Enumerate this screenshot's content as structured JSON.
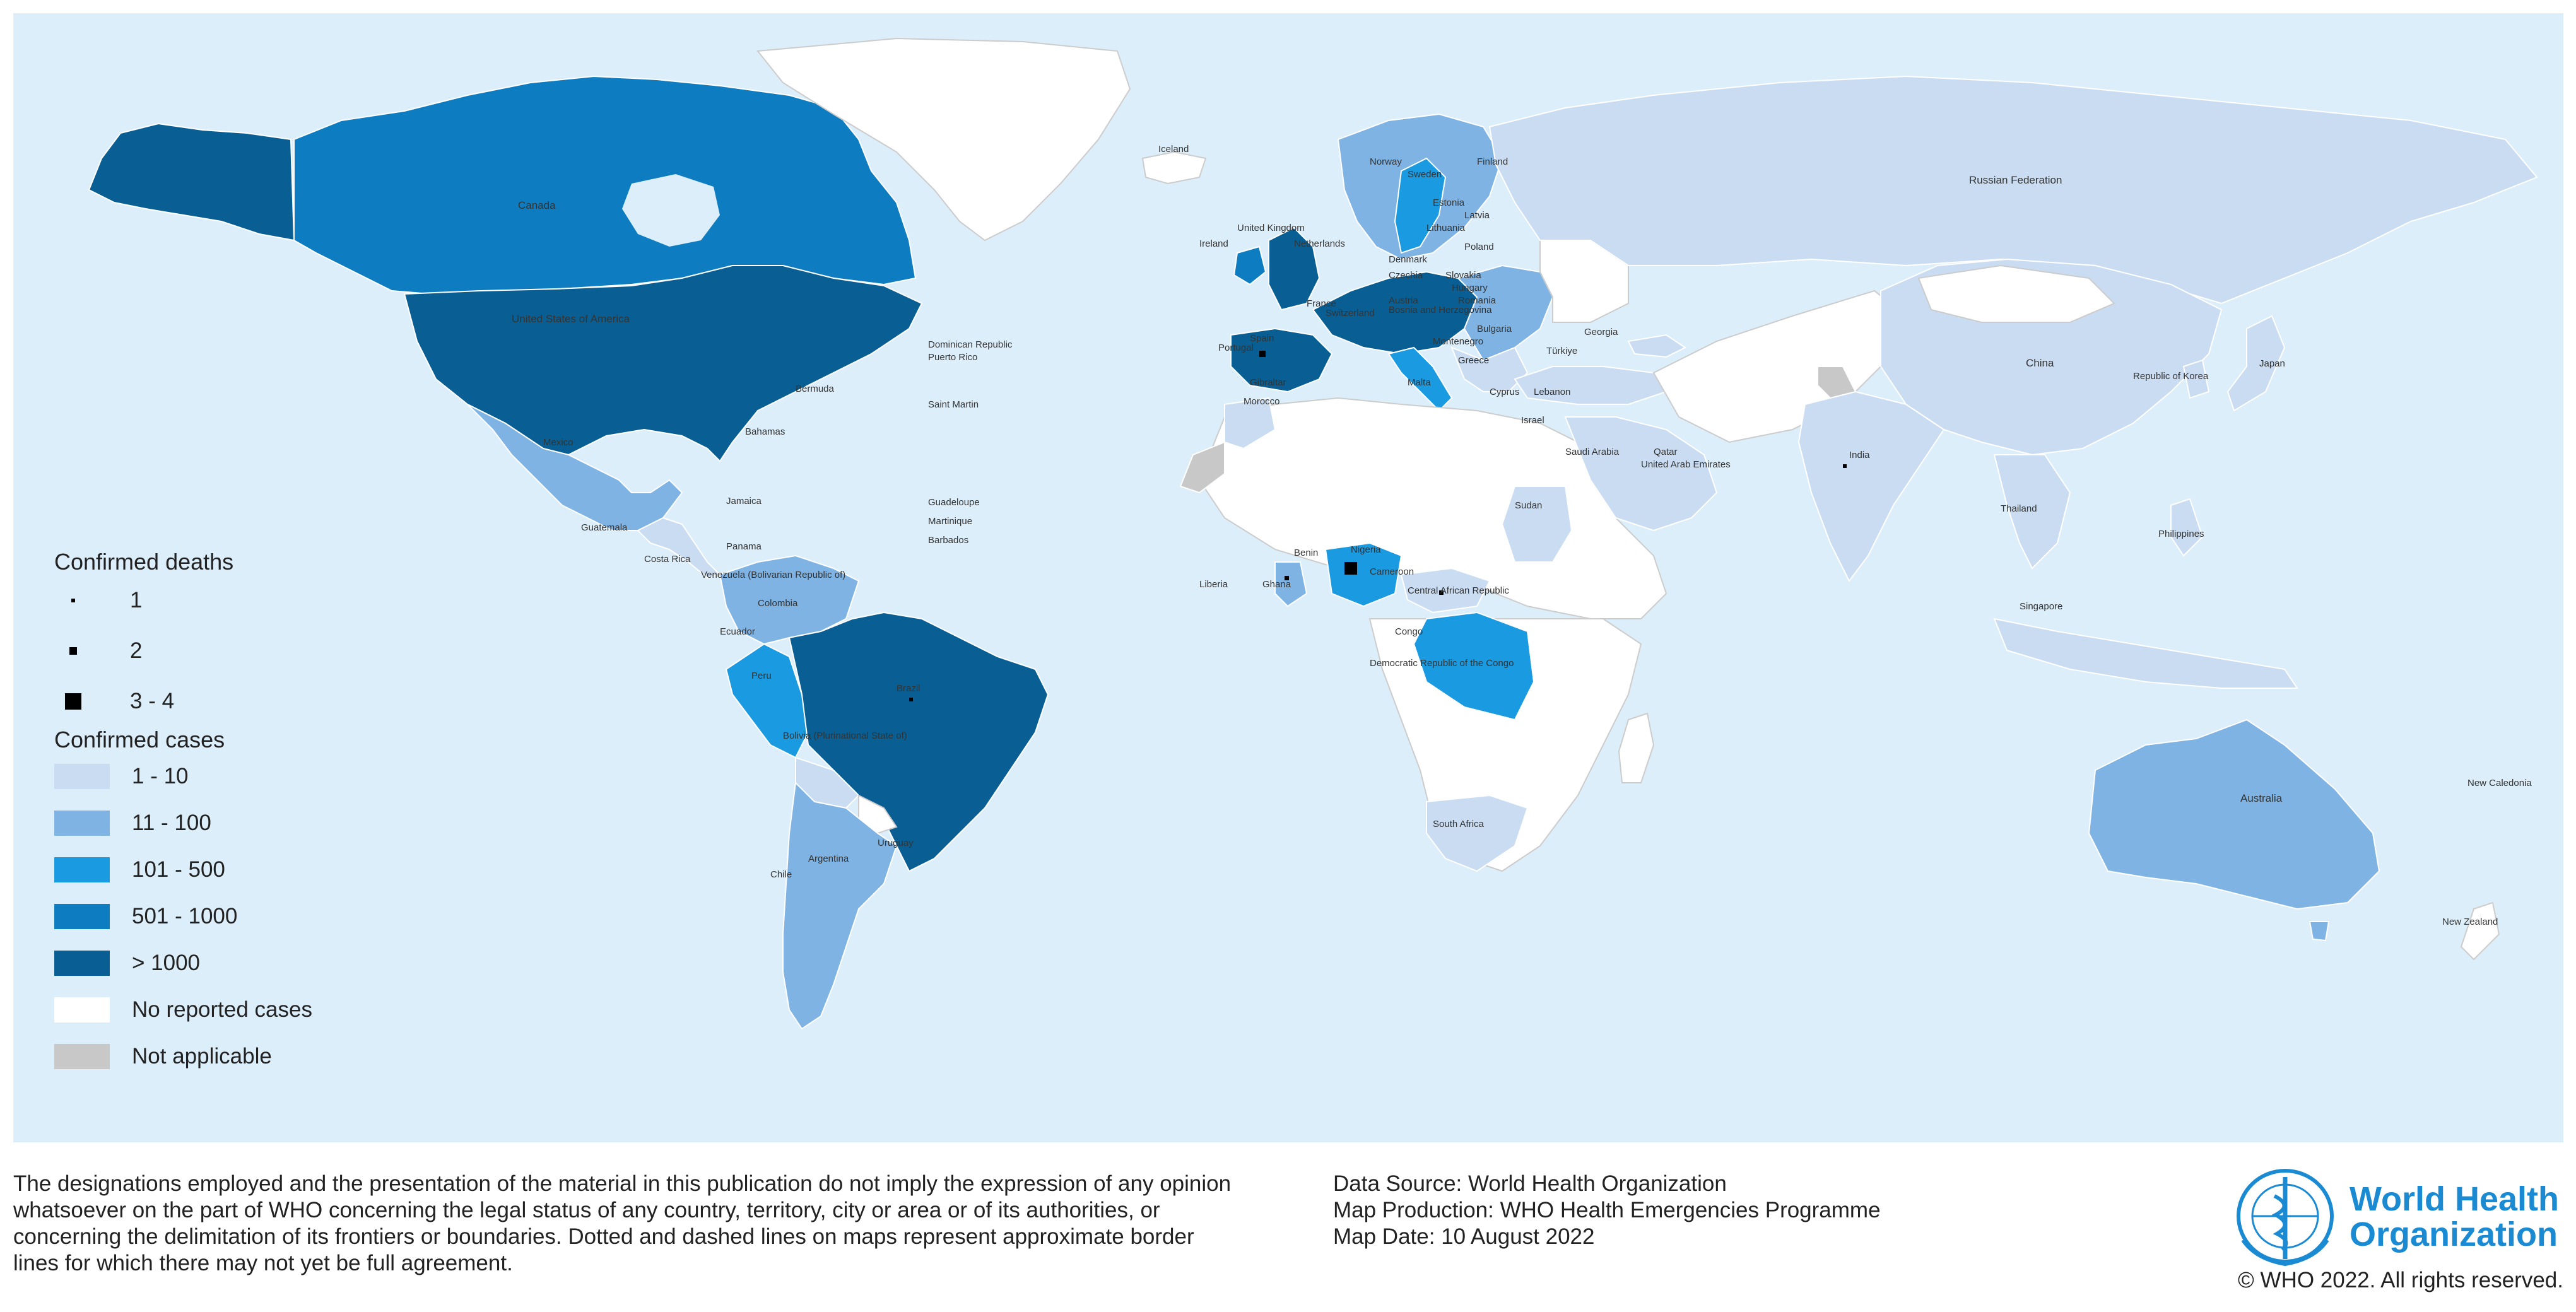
{
  "colors": {
    "ocean": "#dceefa",
    "no_cases": "#ffffff",
    "not_applicable": "#c8c8c8",
    "cases_1_10": "#c9dcf1",
    "cases_11_100": "#7fb3e3",
    "cases_101_500": "#1a9ae0",
    "cases_501_1000": "#0d7cc0",
    "cases_over_1000": "#095f93",
    "brand": "#1a8ad3"
  },
  "legend": {
    "deaths_title": "Confirmed deaths",
    "deaths": [
      {
        "label": "1",
        "size": 1
      },
      {
        "label": "2",
        "size": 2
      },
      {
        "label": "3 - 4",
        "size": 4
      }
    ],
    "cases_title": "Confirmed cases",
    "cases": [
      {
        "label": "1 - 10",
        "color": "#c9dcf1"
      },
      {
        "label": "11 - 100",
        "color": "#7fb3e3"
      },
      {
        "label": "101 - 500",
        "color": "#1a9ae0"
      },
      {
        "label": "501 - 1000",
        "color": "#0d7cc0"
      },
      {
        "label": "> 1000",
        "color": "#095f93"
      },
      {
        "label": "No reported cases",
        "color": "#ffffff"
      },
      {
        "label": "Not applicable",
        "color": "#c8c8c8"
      }
    ]
  },
  "labels": {
    "canada": "Canada",
    "usa": "United States of America",
    "mexico": "Mexico",
    "bermuda": "Bermuda",
    "bahamas": "Bahamas",
    "jamaica": "Jamaica",
    "guatemala": "Guatemala",
    "costa_rica": "Costa Rica",
    "panama": "Panama",
    "dominican_rep": "Dominican Republic",
    "puerto_rico": "Puerto Rico",
    "saint_martin": "Saint Martin",
    "guadeloupe": "Guadeloupe",
    "martinique": "Martinique",
    "barbados": "Barbados",
    "venezuela": "Venezuela (Bolivarian Republic of)",
    "colombia": "Colombia",
    "ecuador": "Ecuador",
    "peru": "Peru",
    "brazil": "Brazil",
    "bolivia": "Bolivia (Plurinational State of)",
    "chile": "Chile",
    "argentina": "Argentina",
    "uruguay": "Uruguay",
    "iceland": "Iceland",
    "ireland": "Ireland",
    "uk": "United Kingdom",
    "norway": "Norway",
    "sweden": "Sweden",
    "finland": "Finland",
    "estonia": "Estonia",
    "latvia": "Latvia",
    "lithuania": "Lithuania",
    "netherlands": "Netherlands",
    "denmark": "Denmark",
    "poland": "Poland",
    "czechia": "Czechia",
    "slovakia": "Slovakia",
    "hungary": "Hungary",
    "romania": "Romania",
    "bosnia": "Bosnia and Herzegovina",
    "montenegro": "Montenegro",
    "bulgaria": "Bulgaria",
    "greece": "Greece",
    "malta": "Malta",
    "france": "France",
    "switzerland": "Switzerland",
    "austria": "Austria",
    "portugal": "Portugal",
    "spain": "Spain",
    "gibraltar": "Gibraltar",
    "morocco": "Morocco",
    "turkiye": "Türkiye",
    "georgia": "Georgia",
    "cyprus": "Cyprus",
    "lebanon": "Lebanon",
    "israel": "Israel",
    "saudi_arabia": "Saudi Arabia",
    "qatar": "Qatar",
    "uae": "United Arab Emirates",
    "russia": "Russian Federation",
    "china": "China",
    "korea": "Republic of Korea",
    "japan": "Japan",
    "india": "India",
    "thailand": "Thailand",
    "philippines": "Philippines",
    "singapore": "Singapore",
    "australia": "Australia",
    "new_caledonia": "New Caledonia",
    "new_zealand": "New Zealand",
    "sudan": "Sudan",
    "liberia": "Liberia",
    "ghana": "Ghana",
    "benin": "Benin",
    "nigeria": "Nigeria",
    "cameroon": "Cameroon",
    "car": "Central African Republic",
    "congo": "Congo",
    "drc": "Democratic Republic of the Congo",
    "south_africa": "South Africa"
  },
  "footer": {
    "disclaimer": "The designations employed and the presentation of the material in this publication do not imply the expression of any opinion whatsoever on the part of WHO concerning the legal status of any country, territory, city or area or of its authorities, or concerning the delimitation of its frontiers or boundaries. Dotted and dashed lines on maps represent approximate border lines for which there may not yet be full agreement.",
    "data_source": "Data Source: World Health Organization",
    "map_production": "Map Production: WHO Health Emergencies Programme",
    "map_date": "Map Date: 10 August 2022",
    "org_name_line1": "World Health",
    "org_name_line2": "Organization",
    "copyright": "© WHO 2022. All rights reserved."
  }
}
